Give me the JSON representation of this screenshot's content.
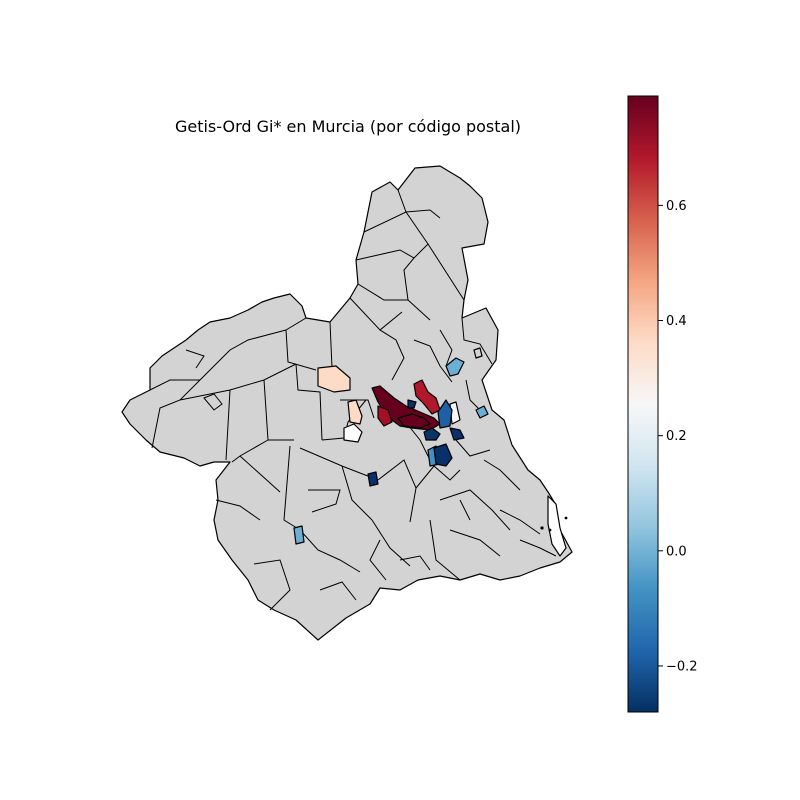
{
  "chart_data": {
    "type": "choropleth",
    "title": "Getis-Ord Gi* en Murcia (por código postal)",
    "missing_color": "#d3d3d3",
    "colormap": "RdBu_r",
    "colorbar": {
      "vmin": -0.28,
      "vmax": 0.79,
      "ticks": [
        {
          "value": -0.2,
          "label": "−0.2"
        },
        {
          "value": 0.0,
          "label": "0.0"
        },
        {
          "value": 0.2,
          "label": "0.2"
        },
        {
          "value": 0.4,
          "label": "0.4"
        },
        {
          "value": 0.6,
          "label": "0.6"
        }
      ]
    },
    "values": [
      0.78,
      0.78,
      0.7,
      0.66,
      0.34,
      0.34,
      0.2,
      0.2,
      0.05,
      0.04,
      0.03,
      0.02,
      -0.12,
      -0.18,
      -0.22,
      -0.25,
      -0.27
    ]
  }
}
